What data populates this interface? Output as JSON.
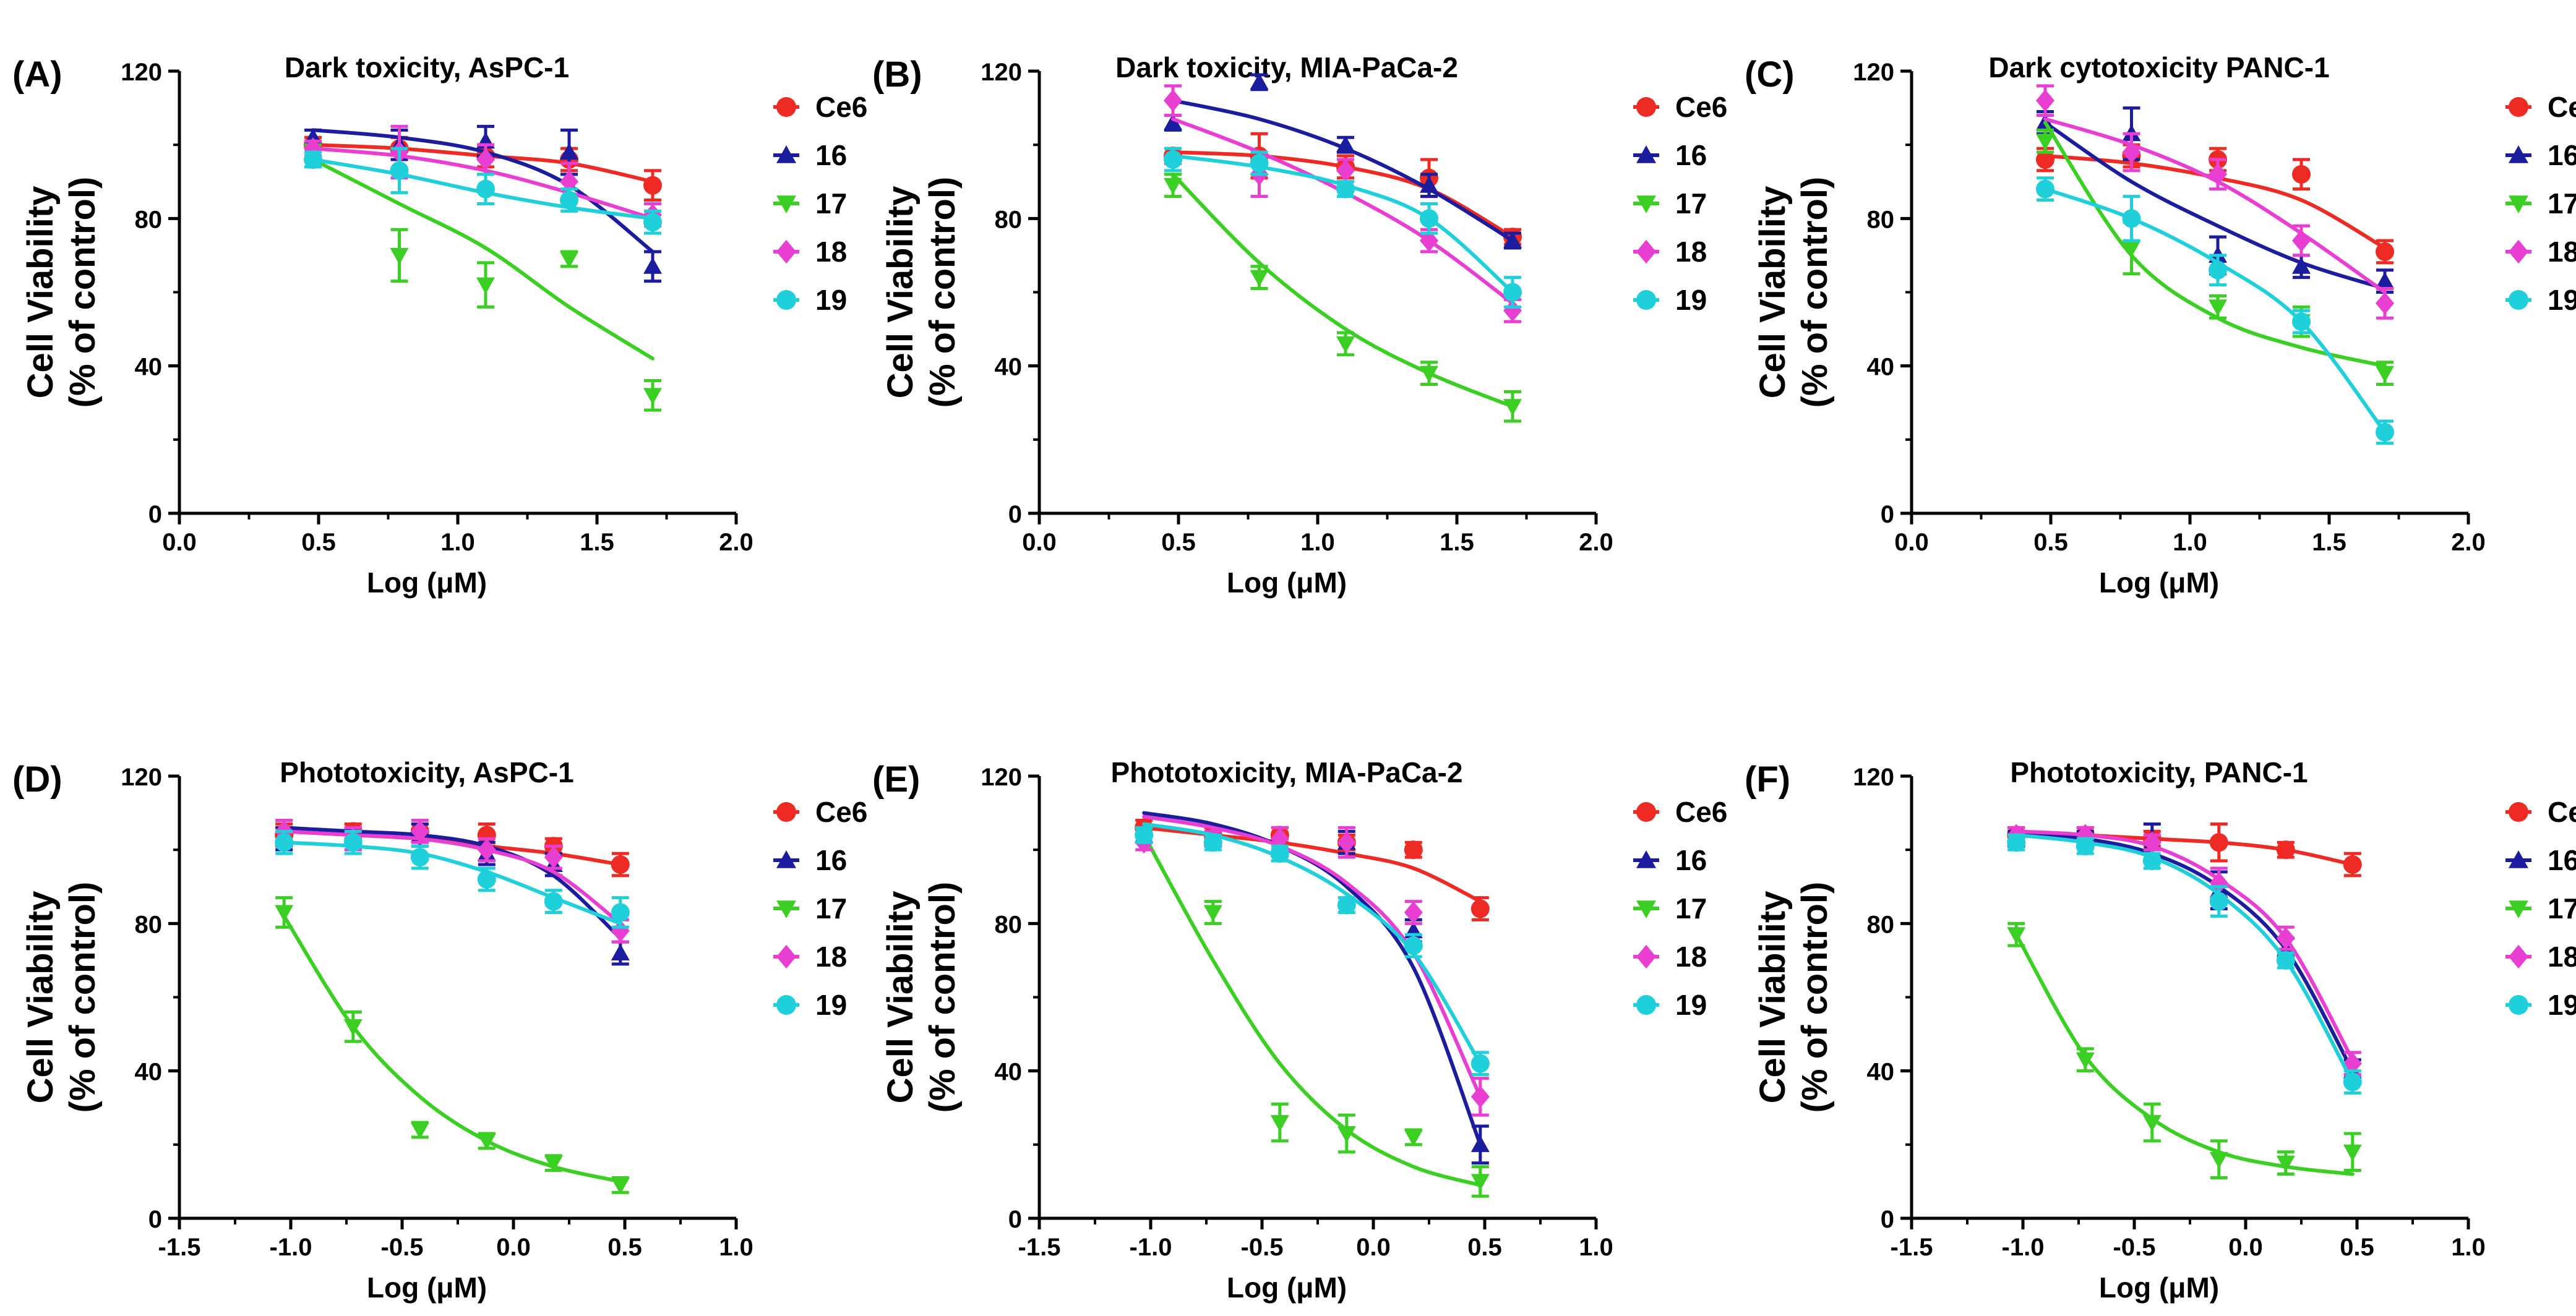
{
  "figure": {
    "legend_series": [
      "Ce6",
      "16",
      "17",
      "18",
      "19"
    ],
    "colors": {
      "Ce6": "#ee2a24",
      "16": "#1c1c9e",
      "17": "#3ccf23",
      "18": "#e83fd2",
      "19": "#1fd0da"
    }
  },
  "chart_data": [
    {
      "type": "line",
      "panel_label": "(A)",
      "title": "Dark toxicity, AsPC-1",
      "xlabel": "Log (μM)",
      "ylabel": [
        "Cell Viability",
        "(% of control)"
      ],
      "xlim": [
        0.0,
        2.0
      ],
      "ylim": [
        0,
        120
      ],
      "xticks": [
        "0.0",
        "0.5",
        "1.0",
        "1.5",
        "2.0"
      ],
      "yticks": [
        "0",
        "40",
        "80",
        "120"
      ],
      "x": [
        0.48,
        0.79,
        1.1,
        1.4,
        1.7
      ],
      "series": [
        {
          "name": "Ce6",
          "values": [
            100,
            99,
            97,
            96,
            89
          ],
          "errors": [
            2,
            3,
            3,
            3,
            4
          ],
          "curve": [
            100,
            99,
            97,
            95,
            90
          ]
        },
        {
          "name": "16",
          "values": [
            102,
            100,
            101,
            98,
            67
          ],
          "errors": [
            2,
            4,
            4,
            6,
            4
          ],
          "curve": [
            104,
            102,
            98,
            89,
            71
          ]
        },
        {
          "name": "17",
          "values": [
            97,
            70,
            62,
            69,
            32
          ],
          "errors": [
            3,
            7,
            6,
            2,
            4
          ],
          "curve": [
            96,
            84,
            72,
            56,
            42
          ]
        },
        {
          "name": "18",
          "values": [
            99,
            98,
            96,
            90,
            81
          ],
          "errors": [
            2,
            7,
            4,
            5,
            3
          ],
          "curve": [
            99,
            97,
            93,
            87,
            80
          ]
        },
        {
          "name": "19",
          "values": [
            96,
            93,
            88,
            85,
            79
          ],
          "errors": [
            2,
            6,
            4,
            3,
            3
          ],
          "curve": [
            96,
            92,
            87,
            83,
            80
          ]
        }
      ]
    },
    {
      "type": "line",
      "panel_label": "(B)",
      "title": "Dark toxicity, MIA-PaCa-2",
      "xlabel": "Log (μM)",
      "ylabel": [
        "Cell Viability",
        "(% of control)"
      ],
      "xlim": [
        0.0,
        2.0
      ],
      "ylim": [
        0,
        120
      ],
      "xticks": [
        "0.0",
        "0.5",
        "1.0",
        "1.5",
        "2.0"
      ],
      "yticks": [
        "0",
        "40",
        "80",
        "120"
      ],
      "x": [
        0.48,
        0.79,
        1.1,
        1.4,
        1.7
      ],
      "series": [
        {
          "name": "Ce6",
          "values": [
            97,
            97,
            94,
            91,
            75
          ],
          "errors": [
            2,
            6,
            3,
            5,
            2
          ],
          "curve": [
            98,
            97,
            94,
            88,
            75
          ]
        },
        {
          "name": "16",
          "values": [
            106,
            117,
            100,
            89,
            74
          ],
          "errors": [
            2,
            2,
            2,
            3,
            2
          ],
          "curve": [
            112,
            107,
            99,
            88,
            74
          ]
        },
        {
          "name": "17",
          "values": [
            89,
            64,
            46,
            38,
            29
          ],
          "errors": [
            3,
            3,
            3,
            3,
            4
          ],
          "curve": [
            92,
            68,
            50,
            38,
            29
          ]
        },
        {
          "name": "18",
          "values": [
            112,
            92,
            93,
            74,
            55
          ],
          "errors": [
            4,
            6,
            3,
            3,
            3
          ],
          "curve": [
            107,
            98,
            87,
            74,
            57
          ]
        },
        {
          "name": "19",
          "values": [
            96,
            95,
            88,
            80,
            60
          ],
          "errors": [
            3,
            3,
            2,
            4,
            4
          ],
          "curve": [
            97,
            94,
            89,
            80,
            60
          ]
        }
      ]
    },
    {
      "type": "line",
      "panel_label": "(C)",
      "title": "Dark cytotoxicity PANC-1",
      "xlabel": "Log (μM)",
      "ylabel": [
        "Cell Viability",
        "(% of control)"
      ],
      "xlim": [
        0.0,
        2.0
      ],
      "ylim": [
        0,
        120
      ],
      "xticks": [
        "0.0",
        "0.5",
        "1.0",
        "1.5",
        "2.0"
      ],
      "yticks": [
        "0",
        "40",
        "80",
        "120"
      ],
      "x": [
        0.48,
        0.79,
        1.1,
        1.4,
        1.7
      ],
      "series": [
        {
          "name": "Ce6",
          "values": [
            96,
            97,
            96,
            92,
            71
          ],
          "errors": [
            3,
            3,
            3,
            4,
            3
          ],
          "curve": [
            97,
            95,
            91,
            85,
            72
          ]
        },
        {
          "name": "16",
          "values": [
            106,
            103,
            70,
            67,
            63
          ],
          "errors": [
            3,
            7,
            5,
            3,
            3
          ],
          "curve": [
            106,
            90,
            78,
            68,
            61
          ]
        },
        {
          "name": "17",
          "values": [
            101,
            72,
            56,
            52,
            38
          ],
          "errors": [
            3,
            7,
            3,
            4,
            3
          ],
          "curve": [
            106,
            70,
            53,
            45,
            40
          ]
        },
        {
          "name": "18",
          "values": [
            112,
            98,
            92,
            74,
            57
          ],
          "errors": [
            4,
            5,
            4,
            4,
            4
          ],
          "curve": [
            107,
            100,
            90,
            76,
            60
          ]
        },
        {
          "name": "19",
          "values": [
            88,
            80,
            66,
            52,
            22
          ],
          "errors": [
            3,
            6,
            4,
            3,
            3
          ],
          "curve": [
            88,
            80,
            68,
            52,
            22
          ]
        }
      ]
    },
    {
      "type": "line",
      "panel_label": "(D)",
      "title": "Phototoxicity, AsPC-1",
      "xlabel": "Log (μM)",
      "ylabel": [
        "Cell Viability",
        "(% of control)"
      ],
      "xlim": [
        -1.5,
        1.0
      ],
      "ylim": [
        0,
        120
      ],
      "xticks": [
        "-1.5",
        "-1.0",
        "-0.5",
        "0.0",
        "0.5",
        "1.0"
      ],
      "yticks": [
        "0",
        "40",
        "80",
        "120"
      ],
      "x": [
        -1.03,
        -0.72,
        -0.42,
        -0.12,
        0.18,
        0.48
      ],
      "series": [
        {
          "name": "Ce6",
          "values": [
            104,
            105,
            105,
            104,
            101,
            96
          ],
          "errors": [
            3,
            2,
            2,
            3,
            2,
            3
          ],
          "curve": [
            105,
            104,
            103,
            101,
            99,
            96
          ]
        },
        {
          "name": "16",
          "values": [
            103,
            104,
            104,
            99,
            96,
            72
          ],
          "errors": [
            3,
            2,
            3,
            3,
            3,
            3
          ],
          "curve": [
            106,
            105,
            104,
            101,
            93,
            76
          ]
        },
        {
          "name": "17",
          "values": [
            83,
            52,
            24,
            21,
            15,
            9
          ],
          "errors": [
            4,
            4,
            2,
            2,
            2,
            2
          ],
          "curve": [
            82,
            52,
            33,
            21,
            14,
            10
          ]
        },
        {
          "name": "18",
          "values": [
            105,
            103,
            105,
            100,
            98,
            78
          ],
          "errors": [
            3,
            3,
            3,
            3,
            3,
            3
          ],
          "curve": [
            105,
            104,
            103,
            100,
            94,
            80
          ]
        },
        {
          "name": "19",
          "values": [
            102,
            102,
            98,
            92,
            86,
            83
          ],
          "errors": [
            3,
            3,
            3,
            3,
            3,
            4
          ],
          "curve": [
            102,
            101,
            99,
            94,
            87,
            80
          ]
        }
      ]
    },
    {
      "type": "line",
      "panel_label": "(E)",
      "title": "Phototoxicity, MIA-PaCa-2",
      "xlabel": "Log (μM)",
      "ylabel": [
        "Cell Viability",
        "(% of control)"
      ],
      "xlim": [
        -1.5,
        1.0
      ],
      "ylim": [
        0,
        120
      ],
      "xticks": [
        "-1.5",
        "-1.0",
        "-0.5",
        "0.0",
        "0.5",
        "1.0"
      ],
      "yticks": [
        "0",
        "40",
        "80",
        "120"
      ],
      "x": [
        -1.03,
        -0.72,
        -0.42,
        -0.12,
        0.18,
        0.48
      ],
      "series": [
        {
          "name": "Ce6",
          "values": [
            106,
            104,
            104,
            102,
            100,
            84
          ],
          "errors": [
            2,
            2,
            2,
            2,
            2,
            3
          ],
          "curve": [
            106,
            104,
            102,
            99,
            95,
            86
          ]
        },
        {
          "name": "16",
          "values": [
            104,
            103,
            100,
            102,
            78,
            20
          ],
          "errors": [
            2,
            2,
            3,
            3,
            3,
            5
          ],
          "curve": [
            110,
            107,
            101,
            90,
            68,
            20
          ]
        },
        {
          "name": "17",
          "values": [
            104,
            83,
            26,
            23,
            22,
            10
          ],
          "errors": [
            2,
            3,
            5,
            5,
            2,
            4
          ],
          "curve": [
            104,
            70,
            42,
            24,
            14,
            9
          ]
        },
        {
          "name": "18",
          "values": [
            102,
            103,
            103,
            102,
            83,
            33
          ],
          "errors": [
            2,
            2,
            3,
            4,
            3,
            5
          ],
          "curve": [
            109,
            106,
            101,
            91,
            72,
            33
          ]
        },
        {
          "name": "19",
          "values": [
            104,
            102,
            99,
            85,
            74,
            42
          ],
          "errors": [
            2,
            2,
            2,
            2,
            3,
            3
          ],
          "curve": [
            107,
            104,
            98,
            88,
            72,
            42
          ]
        }
      ]
    },
    {
      "type": "line",
      "panel_label": "(F)",
      "title": "Phototoxicity, PANC-1",
      "xlabel": "Log (μM)",
      "ylabel": [
        "Cell Viability",
        "(% of control)"
      ],
      "xlim": [
        -1.5,
        1.0
      ],
      "ylim": [
        0,
        120
      ],
      "xticks": [
        "-1.5",
        "-1.0",
        "-0.5",
        "0.0",
        "0.5",
        "1.0"
      ],
      "yticks": [
        "0",
        "40",
        "80",
        "120"
      ],
      "x": [
        -1.03,
        -0.72,
        -0.42,
        -0.12,
        0.18,
        0.48
      ],
      "series": [
        {
          "name": "Ce6",
          "values": [
            104,
            104,
            103,
            102,
            100,
            96
          ],
          "errors": [
            2,
            2,
            2,
            5,
            2,
            3
          ],
          "curve": [
            105,
            104,
            103,
            102,
            100,
            96
          ]
        },
        {
          "name": "16",
          "values": [
            103,
            103,
            102,
            89,
            73,
            40
          ],
          "errors": [
            2,
            2,
            5,
            5,
            3,
            3
          ],
          "curve": [
            105,
            103,
            99,
            90,
            73,
            40
          ]
        },
        {
          "name": "17",
          "values": [
            77,
            43,
            26,
            16,
            15,
            18
          ],
          "errors": [
            3,
            3,
            5,
            5,
            3,
            5
          ],
          "curve": [
            77,
            44,
            27,
            18,
            14,
            12
          ]
        },
        {
          "name": "18",
          "values": [
            104,
            104,
            102,
            91,
            76,
            42
          ],
          "errors": [
            2,
            2,
            2,
            4,
            3,
            3
          ],
          "curve": [
            105,
            104,
            101,
            92,
            76,
            43
          ]
        },
        {
          "name": "19",
          "values": [
            102,
            101,
            97,
            86,
            70,
            37
          ],
          "errors": [
            2,
            2,
            2,
            4,
            2,
            3
          ],
          "curve": [
            104,
            102,
            98,
            88,
            70,
            37
          ]
        }
      ]
    }
  ]
}
